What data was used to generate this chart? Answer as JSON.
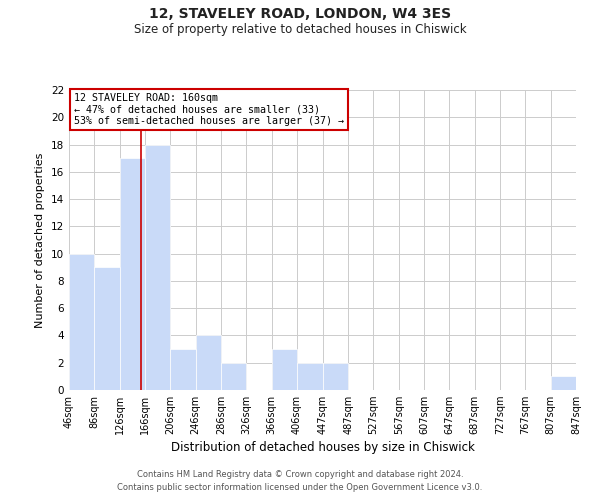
{
  "title": "12, STAVELEY ROAD, LONDON, W4 3ES",
  "subtitle": "Size of property relative to detached houses in Chiswick",
  "xlabel": "Distribution of detached houses by size in Chiswick",
  "ylabel": "Number of detached properties",
  "bin_edges": [
    46,
    86,
    126,
    166,
    206,
    246,
    286,
    326,
    366,
    406,
    447,
    487,
    527,
    567,
    607,
    647,
    687,
    727,
    767,
    807,
    847
  ],
  "counts": [
    10,
    9,
    17,
    18,
    3,
    4,
    2,
    0,
    3,
    2,
    2,
    0,
    0,
    0,
    0,
    0,
    0,
    0,
    0,
    1
  ],
  "bar_color": "#c9daf8",
  "bar_edge_color": "#ffffff",
  "property_line_x": 160,
  "annotation_title": "12 STAVELEY ROAD: 160sqm",
  "annotation_line1": "← 47% of detached houses are smaller (33)",
  "annotation_line2": "53% of semi-detached houses are larger (37) →",
  "vline_color": "#cc0000",
  "annotation_box_edge_color": "#cc0000",
  "ylim": [
    0,
    22
  ],
  "yticks": [
    0,
    2,
    4,
    6,
    8,
    10,
    12,
    14,
    16,
    18,
    20,
    22
  ],
  "tick_labels": [
    "46sqm",
    "86sqm",
    "126sqm",
    "166sqm",
    "206sqm",
    "246sqm",
    "286sqm",
    "326sqm",
    "366sqm",
    "406sqm",
    "447sqm",
    "487sqm",
    "527sqm",
    "567sqm",
    "607sqm",
    "647sqm",
    "687sqm",
    "727sqm",
    "767sqm",
    "807sqm",
    "847sqm"
  ],
  "footer_line1": "Contains HM Land Registry data © Crown copyright and database right 2024.",
  "footer_line2": "Contains public sector information licensed under the Open Government Licence v3.0.",
  "background_color": "#ffffff",
  "grid_color": "#cccccc"
}
